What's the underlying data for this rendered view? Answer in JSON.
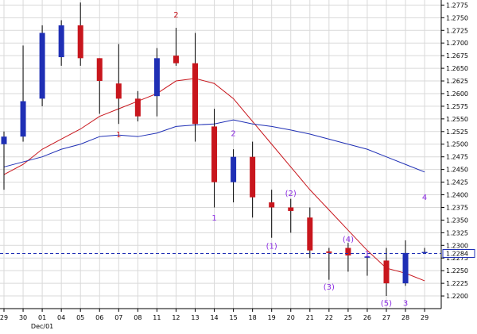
{
  "chart_data": {
    "type": "candlestick",
    "grid": true,
    "colors": {
      "background": "#ffffff",
      "grid": "#d9d9d9",
      "up_candle": "#1f2fb5",
      "down_candle": "#c8161d",
      "ma_fast": "#c8161d",
      "ma_slow": "#1f2fb5",
      "reference_line": "#1f2fb5",
      "annotation_red": "#c8161d",
      "annotation_purple": "#8a2be2"
    },
    "ylim": [
      1.2175,
      1.2785
    ],
    "y_ticks": [
      "1.2775",
      "1.2750",
      "1.2725",
      "1.2700",
      "1.2675",
      "1.2650",
      "1.2625",
      "1.2600",
      "1.2575",
      "1.2550",
      "1.2525",
      "1.2500",
      "1.2475",
      "1.2450",
      "1.2425",
      "1.2400",
      "1.2375",
      "1.2350",
      "1.2325",
      "1.2300",
      "1.2275",
      "1.2250",
      "1.2225",
      "1.2200"
    ],
    "x_labels": [
      "29",
      "30",
      "01",
      "04",
      "05",
      "06",
      "07",
      "08",
      "11",
      "12",
      "13",
      "14",
      "15",
      "18",
      "19",
      "20",
      "21",
      "22",
      "25",
      "26",
      "27",
      "28",
      "29"
    ],
    "x_sublabel": "Dec/01",
    "reference_price": "1.2284",
    "candles": [
      {
        "o": 1.25,
        "h": 1.2525,
        "l": 1.241,
        "c": 1.2515
      },
      {
        "o": 1.2515,
        "h": 1.2695,
        "l": 1.2505,
        "c": 1.2585
      },
      {
        "o": 1.259,
        "h": 1.2735,
        "l": 1.2575,
        "c": 1.272
      },
      {
        "o": 1.2672,
        "h": 1.2745,
        "l": 1.2655,
        "c": 1.2735
      },
      {
        "o": 1.2735,
        "h": 1.278,
        "l": 1.2655,
        "c": 1.267
      },
      {
        "o": 1.267,
        "h": 1.267,
        "l": 1.256,
        "c": 1.2625
      },
      {
        "o": 1.262,
        "h": 1.2698,
        "l": 1.254,
        "c": 1.259
      },
      {
        "o": 1.259,
        "h": 1.2605,
        "l": 1.2545,
        "c": 1.2555
      },
      {
        "o": 1.2595,
        "h": 1.269,
        "l": 1.2555,
        "c": 1.267
      },
      {
        "o": 1.2675,
        "h": 1.273,
        "l": 1.2655,
        "c": 1.266
      },
      {
        "o": 1.266,
        "h": 1.272,
        "l": 1.2505,
        "c": 1.254
      },
      {
        "o": 1.2535,
        "h": 1.257,
        "l": 1.2375,
        "c": 1.2425
      },
      {
        "o": 1.2425,
        "h": 1.249,
        "l": 1.2385,
        "c": 1.2475
      },
      {
        "o": 1.2475,
        "h": 1.2505,
        "l": 1.2355,
        "c": 1.2395
      },
      {
        "o": 1.2385,
        "h": 1.241,
        "l": 1.2315,
        "c": 1.2375
      },
      {
        "o": 1.2375,
        "h": 1.2392,
        "l": 1.2325,
        "c": 1.2368
      },
      {
        "o": 1.2355,
        "h": 1.2375,
        "l": 1.2275,
        "c": 1.229
      },
      {
        "o": 1.2288,
        "h": 1.2295,
        "l": 1.2232,
        "c": 1.2285
      },
      {
        "o": 1.2295,
        "h": 1.2305,
        "l": 1.2248,
        "c": 1.228
      },
      {
        "o": 1.2278,
        "h": 1.2285,
        "l": 1.224,
        "c": 1.2278
      },
      {
        "o": 1.227,
        "h": 1.2295,
        "l": 1.22,
        "c": 1.2225
      },
      {
        "o": 1.2225,
        "h": 1.231,
        "l": 1.222,
        "c": 1.2285
      },
      {
        "o": 1.2285,
        "h": 1.2295,
        "l": 1.2283,
        "c": 1.2287
      }
    ],
    "series": [
      {
        "kind": "moving_average_fast",
        "values": [
          1.244,
          1.246,
          1.249,
          1.251,
          1.253,
          1.2555,
          1.257,
          1.2585,
          1.26,
          1.2625,
          1.263,
          1.262,
          1.259,
          1.2545,
          1.25,
          1.2455,
          1.241,
          1.237,
          1.233,
          1.229,
          1.2255,
          1.2245,
          1.223
        ]
      },
      {
        "kind": "moving_average_slow",
        "values": [
          1.2455,
          1.2465,
          1.2475,
          1.249,
          1.25,
          1.2515,
          1.2518,
          1.2515,
          1.2522,
          1.2535,
          1.2538,
          1.254,
          1.2548,
          1.254,
          1.2535,
          1.2528,
          1.252,
          1.251,
          1.25,
          1.249,
          1.2475,
          1.246,
          1.2445
        ]
      }
    ],
    "annotations": [
      {
        "text": "2",
        "x": 9,
        "y": 1.2757,
        "color": "red"
      },
      {
        "text": "1",
        "x": 6,
        "y": 1.252,
        "color": "red"
      },
      {
        "text": "2",
        "x": 12,
        "y": 1.2522,
        "color": "purple"
      },
      {
        "text": "1",
        "x": 11,
        "y": 1.2355,
        "color": "purple"
      },
      {
        "text": "(2)",
        "x": 15,
        "y": 1.2404,
        "color": "purple"
      },
      {
        "text": "(1)",
        "x": 14,
        "y": 1.23,
        "color": "purple"
      },
      {
        "text": "(4)",
        "x": 18,
        "y": 1.2313,
        "color": "purple"
      },
      {
        "text": "(3)",
        "x": 17,
        "y": 1.2219,
        "color": "purple"
      },
      {
        "text": "1",
        "x": 19,
        "y": 1.2284,
        "color": "purple"
      },
      {
        "text": "(5)",
        "x": 20,
        "y": 1.2187,
        "color": "purple"
      },
      {
        "text": "3",
        "x": 21,
        "y": 1.2187,
        "color": "purple"
      },
      {
        "text": "4",
        "x": 22,
        "y": 1.2396,
        "color": "purple"
      }
    ]
  }
}
